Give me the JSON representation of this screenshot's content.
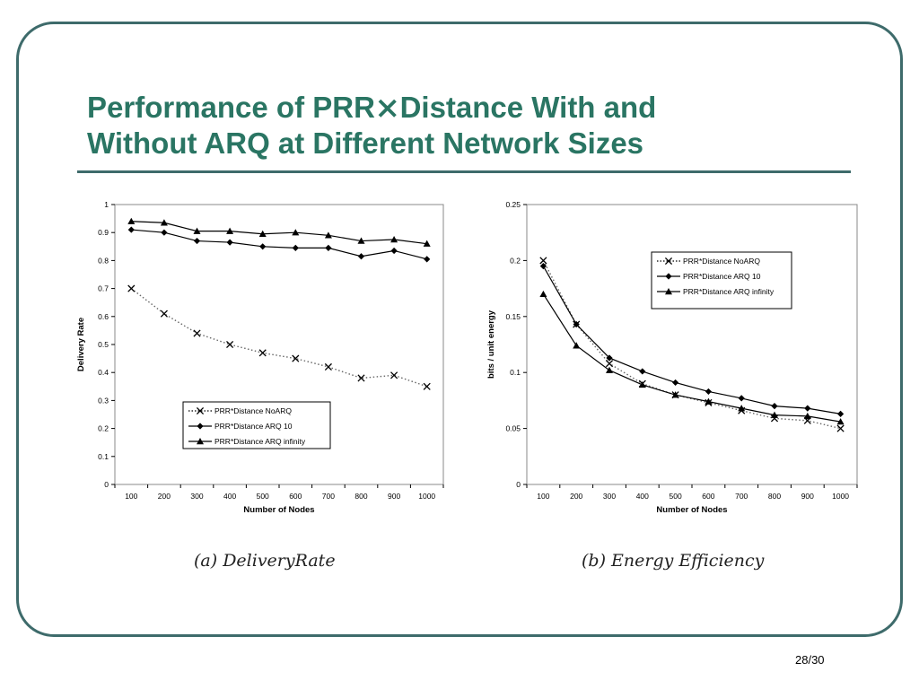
{
  "slide": {
    "title_line1": "Performance of PRR⨯Distance With and",
    "title_line2": "Without ARQ at Different Network Sizes",
    "page_number": "28/30",
    "title_color": "#2a7563",
    "frame_color": "#3e6b6b"
  },
  "captions": {
    "a": "(a) DeliveryRate",
    "b": "(b) Energy Efficiency"
  },
  "chart_data": [
    {
      "type": "line",
      "title": "",
      "xlabel": "Number of Nodes",
      "ylabel": "Delivery Rate",
      "x": [
        100,
        200,
        300,
        400,
        500,
        600,
        700,
        800,
        900,
        1000
      ],
      "ylim": [
        0,
        1
      ],
      "yticks": [
        "0",
        "0.1",
        "0.2",
        "0.3",
        "0.4",
        "0.5",
        "0.6",
        "0.7",
        "0.8",
        "0.9",
        "1"
      ],
      "legend_position": "bottom-center",
      "series": [
        {
          "name": "PRR*Distance NoARQ",
          "marker": "x",
          "dashed": true,
          "values": [
            0.7,
            0.61,
            0.54,
            0.5,
            0.47,
            0.45,
            0.42,
            0.38,
            0.39,
            0.35
          ]
        },
        {
          "name": "PRR*Distance ARQ 10",
          "marker": "diamond",
          "dashed": false,
          "values": [
            0.91,
            0.9,
            0.87,
            0.865,
            0.85,
            0.845,
            0.845,
            0.815,
            0.835,
            0.805
          ]
        },
        {
          "name": "PRR*Distance ARQ infinity",
          "marker": "triangle",
          "dashed": false,
          "values": [
            0.94,
            0.935,
            0.905,
            0.905,
            0.895,
            0.9,
            0.89,
            0.87,
            0.875,
            0.86
          ]
        }
      ]
    },
    {
      "type": "line",
      "title": "",
      "xlabel": "Number of Nodes",
      "ylabel": "bits / unit energy",
      "x": [
        100,
        200,
        300,
        400,
        500,
        600,
        700,
        800,
        900,
        1000
      ],
      "ylim": [
        0,
        0.25
      ],
      "yticks": [
        "0",
        "0.05",
        "0.1",
        "0.15",
        "0.2",
        "0.25"
      ],
      "legend_position": "top-right",
      "series": [
        {
          "name": "PRR*Distance NoARQ",
          "marker": "x",
          "dashed": true,
          "values": [
            0.2,
            0.143,
            0.108,
            0.09,
            0.08,
            0.073,
            0.066,
            0.059,
            0.057,
            0.05
          ]
        },
        {
          "name": "PRR*Distance ARQ 10",
          "marker": "diamond",
          "dashed": false,
          "values": [
            0.195,
            0.143,
            0.113,
            0.101,
            0.091,
            0.083,
            0.077,
            0.07,
            0.068,
            0.063
          ]
        },
        {
          "name": "PRR*Distance ARQ infinity",
          "marker": "triangle",
          "dashed": false,
          "values": [
            0.17,
            0.124,
            0.102,
            0.089,
            0.08,
            0.074,
            0.068,
            0.062,
            0.061,
            0.056
          ]
        }
      ]
    }
  ]
}
